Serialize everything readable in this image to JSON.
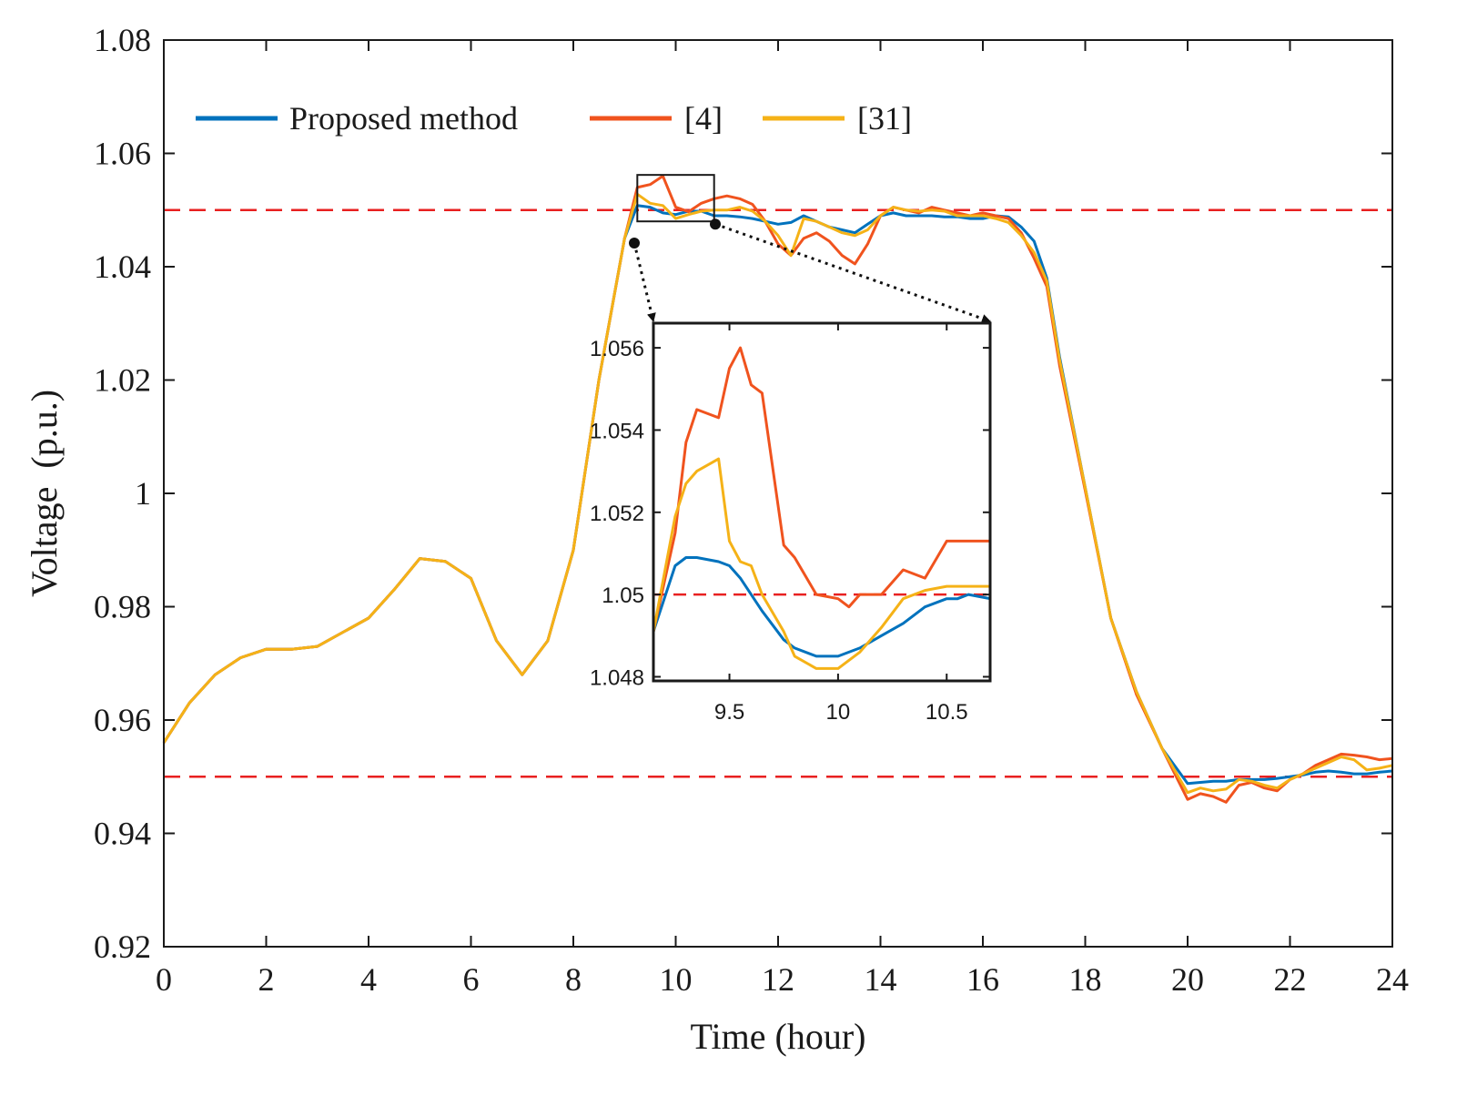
{
  "chart_data": {
    "type": "line",
    "xlabel": "Time (hour)",
    "ylabel": "Voltage  (p.u.)",
    "xlim": [
      0,
      24
    ],
    "ylim": [
      0.92,
      1.08
    ],
    "xticks": [
      0,
      2,
      4,
      6,
      8,
      10,
      12,
      14,
      16,
      18,
      20,
      22,
      24
    ],
    "xtick_labels": [
      "0",
      "2",
      "4",
      "6",
      "8",
      "10",
      "12",
      "14",
      "16",
      "18",
      "20",
      "22",
      "24"
    ],
    "yticks": [
      0.92,
      0.94,
      0.96,
      0.98,
      1.0,
      1.02,
      1.04,
      1.06,
      1.08
    ],
    "ytick_labels": [
      "0.92",
      "0.94",
      "0.96",
      "0.98",
      "1",
      "1.02",
      "1.04",
      "1.06",
      "1.08"
    ],
    "reference_lines": [
      1.05,
      0.95
    ],
    "legend": {
      "placement": "top-left",
      "entries": [
        {
          "label": "Proposed method",
          "color": "#0072BD"
        },
        {
          "label": "[4]",
          "color": "#F0531E"
        },
        {
          "label": "[31]",
          "color": "#F5B217"
        }
      ]
    },
    "colors": {
      "proposed": "#0072BD",
      "ref4": "#F0531E",
      "ref31": "#F5B217",
      "limit": "#E82020",
      "axis": "#1a1a1a"
    },
    "x": [
      0,
      0.5,
      1,
      1.5,
      2,
      2.5,
      3,
      3.5,
      4,
      4.5,
      5,
      5.5,
      6,
      6.5,
      7,
      7.5,
      8,
      8.5,
      9,
      9.25,
      9.5,
      9.75,
      10,
      10.25,
      10.5,
      10.75,
      11,
      11.25,
      11.5,
      11.75,
      12,
      12.25,
      12.5,
      12.75,
      13,
      13.25,
      13.5,
      13.75,
      14,
      14.25,
      14.5,
      14.75,
      15,
      15.25,
      15.5,
      15.75,
      16,
      16.25,
      16.5,
      16.75,
      17,
      17.25,
      17.5,
      18,
      18.5,
      19,
      19.5,
      20,
      20.25,
      20.5,
      20.75,
      21,
      21.25,
      21.5,
      21.75,
      22,
      22.25,
      22.5,
      22.75,
      23,
      23.25,
      23.5,
      23.75,
      24
    ],
    "series": [
      {
        "name": "Proposed method",
        "values": [
          0.956,
          0.963,
          0.968,
          0.971,
          0.9725,
          0.9725,
          0.973,
          0.9755,
          0.978,
          0.983,
          0.9885,
          0.988,
          0.985,
          0.974,
          0.968,
          0.974,
          0.99,
          1.02,
          1.045,
          1.0508,
          1.0505,
          1.0495,
          1.0492,
          1.0498,
          1.0498,
          1.049,
          1.049,
          1.0488,
          1.0485,
          1.048,
          1.0475,
          1.0478,
          1.049,
          1.048,
          1.047,
          1.0465,
          1.046,
          1.0475,
          1.049,
          1.0495,
          1.049,
          1.049,
          1.049,
          1.0488,
          1.0488,
          1.0485,
          1.0485,
          1.049,
          1.0488,
          1.047,
          1.0445,
          1.038,
          1.024,
          1.001,
          0.978,
          0.965,
          0.955,
          0.9488,
          0.949,
          0.9492,
          0.9492,
          0.9495,
          0.9495,
          0.9495,
          0.9497,
          0.95,
          0.9503,
          0.9508,
          0.951,
          0.9508,
          0.9505,
          0.9505,
          0.9508,
          0.951
        ]
      },
      {
        "name": "[4]",
        "values": [
          0.956,
          0.963,
          0.968,
          0.971,
          0.9725,
          0.9725,
          0.973,
          0.9755,
          0.978,
          0.983,
          0.9885,
          0.988,
          0.985,
          0.974,
          0.968,
          0.974,
          0.99,
          1.02,
          1.045,
          1.054,
          1.0545,
          1.056,
          1.0505,
          1.0497,
          1.0512,
          1.052,
          1.0525,
          1.052,
          1.051,
          1.048,
          1.044,
          1.042,
          1.045,
          1.046,
          1.0445,
          1.042,
          1.0405,
          1.044,
          1.049,
          1.0505,
          1.05,
          1.0495,
          1.0505,
          1.05,
          1.0495,
          1.049,
          1.0495,
          1.049,
          1.0485,
          1.046,
          1.0415,
          1.0365,
          1.0225,
          1.0005,
          0.978,
          0.9645,
          0.955,
          0.946,
          0.947,
          0.9465,
          0.9455,
          0.9485,
          0.949,
          0.948,
          0.9475,
          0.9495,
          0.9505,
          0.952,
          0.953,
          0.954,
          0.9538,
          0.9535,
          0.953,
          0.9532
        ]
      },
      {
        "name": "[31]",
        "values": [
          0.956,
          0.963,
          0.968,
          0.971,
          0.9725,
          0.9725,
          0.973,
          0.9755,
          0.978,
          0.983,
          0.9885,
          0.988,
          0.985,
          0.974,
          0.968,
          0.974,
          0.99,
          1.02,
          1.045,
          1.0528,
          1.0512,
          1.0508,
          1.0485,
          1.0492,
          1.0498,
          1.05,
          1.05,
          1.0505,
          1.0498,
          1.048,
          1.0455,
          1.042,
          1.0485,
          1.048,
          1.047,
          1.046,
          1.0455,
          1.0465,
          1.049,
          1.0505,
          1.05,
          1.0498,
          1.05,
          1.0498,
          1.049,
          1.049,
          1.049,
          1.0485,
          1.0478,
          1.0455,
          1.0425,
          1.0375,
          1.0235,
          1.001,
          0.978,
          0.965,
          0.955,
          0.9472,
          0.948,
          0.9475,
          0.9478,
          0.9495,
          0.9492,
          0.9485,
          0.948,
          0.9495,
          0.9505,
          0.9515,
          0.9525,
          0.9535,
          0.953,
          0.9512,
          0.9515,
          0.952
        ]
      }
    ],
    "zoom_box": {
      "xlim": [
        9.25,
        10.75
      ],
      "ylim": [
        1.048,
        1.0562
      ]
    },
    "inset": {
      "xlim": [
        9.15,
        10.7
      ],
      "ylim": [
        1.0479,
        1.0566
      ],
      "xticks": [
        9.5,
        10,
        10.5
      ],
      "xtick_labels": [
        "9.5",
        "10",
        "10.5"
      ],
      "yticks": [
        1.048,
        1.05,
        1.052,
        1.054,
        1.056
      ],
      "ytick_labels": [
        "1.048",
        "1.05",
        "1.052",
        "1.054",
        "1.056"
      ],
      "reference_line": 1.05,
      "x": [
        9.15,
        9.25,
        9.3,
        9.35,
        9.45,
        9.5,
        9.55,
        9.6,
        9.65,
        9.75,
        9.8,
        9.9,
        10.0,
        10.05,
        10.1,
        10.2,
        10.3,
        10.4,
        10.5,
        10.55,
        10.6,
        10.7
      ],
      "series": [
        {
          "name": "Proposed method",
          "values": [
            1.0491,
            1.0507,
            1.0509,
            1.0509,
            1.0508,
            1.0507,
            1.0504,
            1.05,
            1.0496,
            1.0489,
            1.0487,
            1.0485,
            1.0485,
            1.0486,
            1.0487,
            1.049,
            1.0493,
            1.0497,
            1.0499,
            1.0499,
            1.05,
            1.0499
          ]
        },
        {
          "name": "[4]",
          "values": [
            1.0491,
            1.0515,
            1.0537,
            1.0545,
            1.0543,
            1.0555,
            1.056,
            1.0551,
            1.0549,
            1.0512,
            1.0509,
            1.05,
            1.0499,
            1.0497,
            1.05,
            1.05,
            1.0506,
            1.0504,
            1.0513,
            1.0513,
            1.0513,
            1.0513
          ]
        },
        {
          "name": "[31]",
          "values": [
            1.0491,
            1.0519,
            1.0527,
            1.053,
            1.0533,
            1.0513,
            1.0508,
            1.0507,
            1.05,
            1.0491,
            1.0485,
            1.0482,
            1.0482,
            1.0484,
            1.0486,
            1.0492,
            1.0499,
            1.0501,
            1.0502,
            1.0502,
            1.0502,
            1.0502
          ]
        }
      ]
    }
  }
}
